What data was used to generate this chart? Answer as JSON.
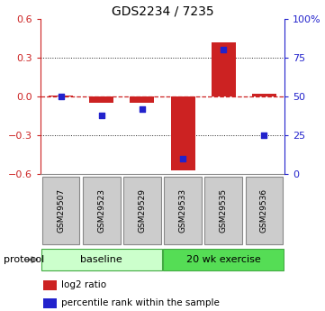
{
  "title": "GDS2234 / 7235",
  "samples": [
    "GSM29507",
    "GSM29523",
    "GSM29529",
    "GSM29533",
    "GSM29535",
    "GSM29536"
  ],
  "log2_ratio": [
    0.01,
    -0.05,
    -0.05,
    -0.57,
    0.42,
    0.02
  ],
  "percentile_rank": [
    50,
    38,
    42,
    10,
    80,
    25
  ],
  "bar_color": "#cc2222",
  "dot_color": "#2222cc",
  "ylim_left": [
    -0.6,
    0.6
  ],
  "ylim_right": [
    0,
    100
  ],
  "yticks_left": [
    -0.6,
    -0.3,
    0.0,
    0.3,
    0.6
  ],
  "yticks_right": [
    0,
    25,
    50,
    75,
    100
  ],
  "ytick_labels_right": [
    "0",
    "25",
    "50",
    "75",
    "100%"
  ],
  "groups": [
    {
      "label": "baseline",
      "start": 0,
      "end": 2,
      "color": "#ccffcc"
    },
    {
      "label": "20 wk exercise",
      "start": 3,
      "end": 5,
      "color": "#55dd55"
    }
  ],
  "protocol_label": "protocol",
  "legend_bar_label": "log2 ratio",
  "legend_dot_label": "percentile rank within the sample",
  "hline_color": "#cc2222",
  "hline_style": "--",
  "grid_color": "#222222",
  "grid_style": ":",
  "background_color": "#ffffff",
  "bar_width": 0.6,
  "sample_box_color": "#cccccc",
  "sample_box_edge_color": "#888888",
  "spine_color": "#888888"
}
